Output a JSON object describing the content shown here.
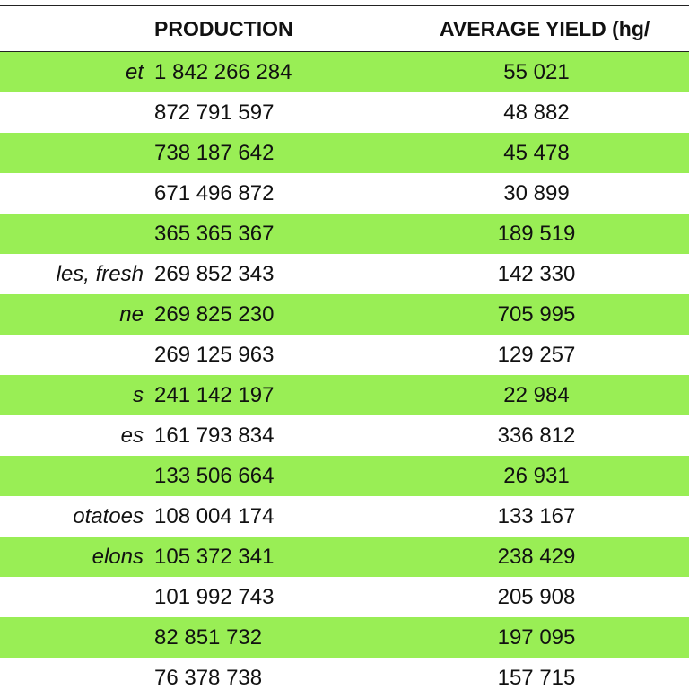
{
  "table": {
    "headers": {
      "production": "PRODUCTION",
      "yield": "AVERAGE YIELD (hg/"
    },
    "rows": [
      {
        "crop": "et",
        "production": "1 842 266 284",
        "yield": "55 021",
        "shaded": true
      },
      {
        "crop": "",
        "production": "872 791 597",
        "yield": "48 882",
        "shaded": false
      },
      {
        "crop": "",
        "production": "738 187 642",
        "yield": "45 478",
        "shaded": true
      },
      {
        "crop": "",
        "production": "671 496 872",
        "yield": "30 899",
        "shaded": false
      },
      {
        "crop": "",
        "production": "365 365 367",
        "yield": "189 519",
        "shaded": true
      },
      {
        "crop": "les, fresh",
        "production": "269 852 343",
        "yield": "142 330",
        "shaded": false
      },
      {
        "crop": "ne",
        "production": "269 825 230",
        "yield": "705 995",
        "shaded": true
      },
      {
        "crop": "",
        "production": "269 125 963",
        "yield": "129 257",
        "shaded": false
      },
      {
        "crop": "s",
        "production": "241 142 197",
        "yield": "22 984",
        "shaded": true
      },
      {
        "crop": "es",
        "production": "161 793 834",
        "yield": "336 812",
        "shaded": false
      },
      {
        "crop": "",
        "production": "133 506 664",
        "yield": "26 931",
        "shaded": true
      },
      {
        "crop": "otatoes",
        "production": "108 004 174",
        "yield": "133 167",
        "shaded": false
      },
      {
        "crop": "elons",
        "production": "105 372 341",
        "yield": "238 429",
        "shaded": true
      },
      {
        "crop": "",
        "production": "101 992 743",
        "yield": "205 908",
        "shaded": false
      },
      {
        "crop": "",
        "production": "82 851 732",
        "yield": "197 095",
        "shaded": true
      },
      {
        "crop": "",
        "production": "76 378 738",
        "yield": "157 715",
        "shaded": false
      }
    ]
  },
  "colors": {
    "row_highlight": "#99ee55",
    "rule": "#222222"
  }
}
